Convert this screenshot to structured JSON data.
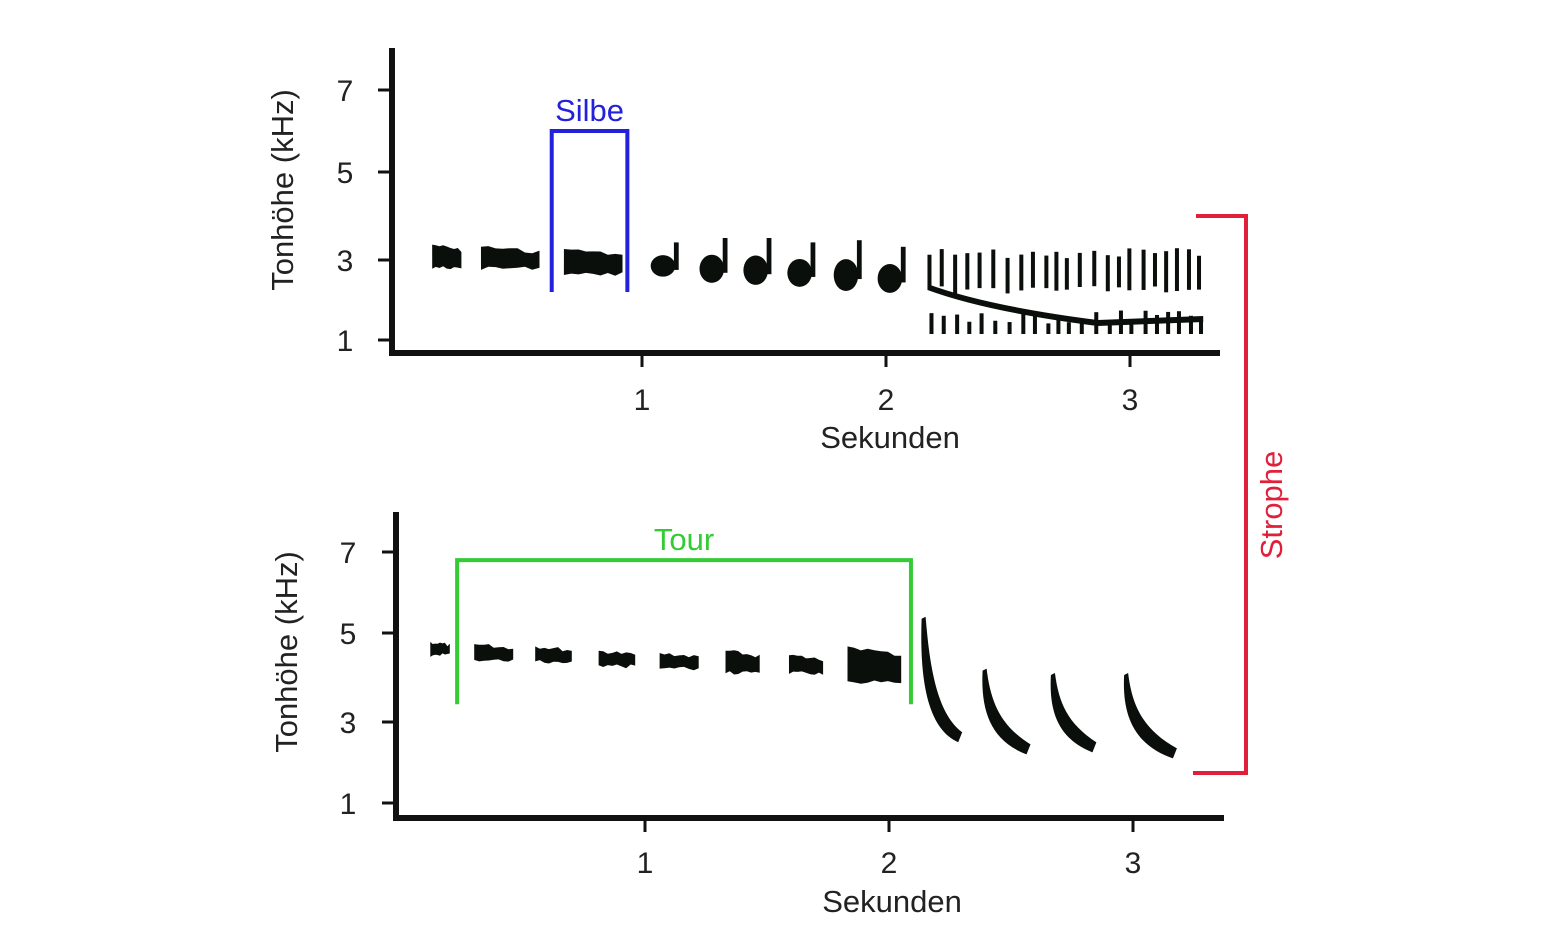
{
  "colors": {
    "ink": "#0b0f0b",
    "axis": "#111111",
    "silbe": "#2222dd",
    "tour": "#33cc33",
    "strophe": "#e0203a"
  },
  "chart_data": [
    {
      "type": "spectrogram",
      "ylabel": "Tonhöhe (kHz)",
      "xlabel": "Sekunden",
      "xlim": [
        0,
        3.4
      ],
      "ylim": [
        0.7,
        8
      ],
      "yticks": [
        "1",
        "3",
        "5",
        "7"
      ],
      "xticks": [
        "1",
        "2",
        "3"
      ],
      "annotation": {
        "label": "Silbe",
        "x_start": 0.63,
        "x_end": 0.94,
        "y_bottom": 2.2,
        "y_top": 6.0
      },
      "syllables": [
        {
          "kind": "block",
          "t0": 0.14,
          "t1": 0.26,
          "f_top": 3.35,
          "f_bottom": 2.8
        },
        {
          "kind": "block",
          "t0": 0.34,
          "t1": 0.58,
          "f_top": 3.3,
          "f_bottom": 2.8
        },
        {
          "kind": "block",
          "t0": 0.68,
          "t1": 0.92,
          "f_top": 3.25,
          "f_bottom": 2.65
        },
        {
          "kind": "note",
          "t0": 1.03,
          "t1": 1.17,
          "f_top": 3.4,
          "f_bottom": 2.6
        },
        {
          "kind": "note",
          "t0": 1.23,
          "t1": 1.37,
          "f_top": 3.5,
          "f_bottom": 2.45
        },
        {
          "kind": "note",
          "t0": 1.41,
          "t1": 1.55,
          "f_top": 3.5,
          "f_bottom": 2.4
        },
        {
          "kind": "note",
          "t0": 1.59,
          "t1": 1.73,
          "f_top": 3.4,
          "f_bottom": 2.35
        },
        {
          "kind": "note",
          "t0": 1.78,
          "t1": 1.92,
          "f_top": 3.45,
          "f_bottom": 2.25
        },
        {
          "kind": "note",
          "t0": 1.96,
          "t1": 2.1,
          "f_top": 3.3,
          "f_bottom": 2.2
        },
        {
          "kind": "trill",
          "t0": 2.17,
          "t1": 3.3,
          "f_top": 3.2,
          "f_bottom": 1.15
        }
      ]
    },
    {
      "type": "spectrogram",
      "ylabel": "Tonhöhe (kHz)",
      "xlabel": "Sekunden",
      "xlim": [
        0,
        3.4
      ],
      "ylim": [
        0.7,
        8
      ],
      "yticks": [
        "1",
        "3",
        "5",
        "7"
      ],
      "xticks": [
        "1",
        "2",
        "3"
      ],
      "annotation": {
        "label": "Tour",
        "x_start": 0.23,
        "x_end": 2.09,
        "y_bottom": 3.4,
        "y_top": 6.8
      },
      "syllables": [
        {
          "kind": "block",
          "t0": 0.12,
          "t1": 0.2,
          "f_top": 4.8,
          "f_bottom": 4.5
        },
        {
          "kind": "block",
          "t0": 0.3,
          "t1": 0.46,
          "f_top": 4.75,
          "f_bottom": 4.4
        },
        {
          "kind": "block",
          "t0": 0.55,
          "t1": 0.7,
          "f_top": 4.7,
          "f_bottom": 4.35
        },
        {
          "kind": "block",
          "t0": 0.81,
          "t1": 0.96,
          "f_top": 4.6,
          "f_bottom": 4.25
        },
        {
          "kind": "block",
          "t0": 1.06,
          "t1": 1.22,
          "f_top": 4.55,
          "f_bottom": 4.2
        },
        {
          "kind": "block",
          "t0": 1.33,
          "t1": 1.47,
          "f_top": 4.6,
          "f_bottom": 4.1
        },
        {
          "kind": "block",
          "t0": 1.59,
          "t1": 1.73,
          "f_top": 4.5,
          "f_bottom": 4.1
        },
        {
          "kind": "block",
          "t0": 1.83,
          "t1": 2.05,
          "f_top": 4.7,
          "f_bottom": 3.9
        },
        {
          "kind": "sweep",
          "t0": 2.15,
          "t1": 2.3,
          "f_top": 5.4,
          "f_bottom": 2.6
        },
        {
          "kind": "sweep",
          "t0": 2.4,
          "t1": 2.58,
          "f_top": 4.2,
          "f_bottom": 2.3
        },
        {
          "kind": "sweep",
          "t0": 2.68,
          "t1": 2.85,
          "f_top": 4.1,
          "f_bottom": 2.35
        },
        {
          "kind": "sweep",
          "t0": 2.98,
          "t1": 3.18,
          "f_top": 4.1,
          "f_bottom": 2.2
        }
      ]
    }
  ],
  "strophe": {
    "label": "Strophe"
  }
}
